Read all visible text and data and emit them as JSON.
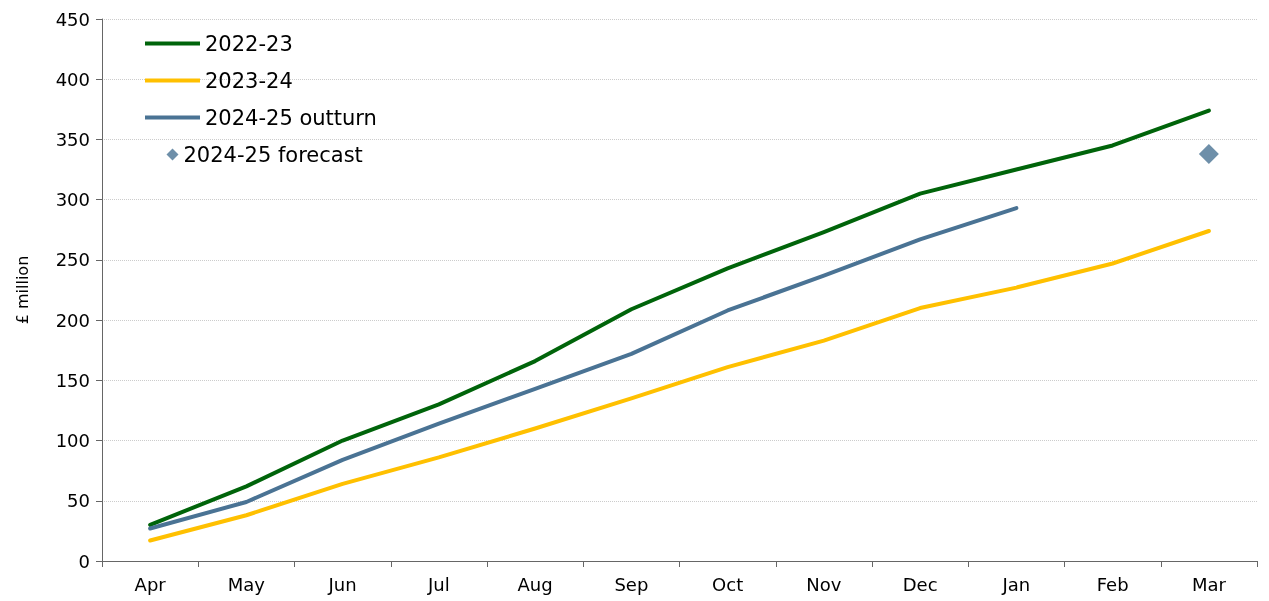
{
  "chart_data": {
    "type": "line",
    "ylabel": "£ million",
    "categories": [
      "Apr",
      "May",
      "Jun",
      "Jul",
      "Aug",
      "Sep",
      "Oct",
      "Nov",
      "Dec",
      "Jan",
      "Feb",
      "Mar"
    ],
    "ylim": [
      0,
      450
    ],
    "yticks": [
      0,
      50,
      100,
      150,
      200,
      250,
      300,
      350,
      400,
      450
    ],
    "grid": "y",
    "legend": "top left",
    "marker": "none",
    "line_style": "solid",
    "series": [
      {
        "name": "2022-23",
        "color": "#00640a",
        "values": [
          30,
          62,
          100,
          130,
          166,
          209,
          243,
          273,
          305,
          325,
          345,
          374
        ]
      },
      {
        "name": "2023-24",
        "color": "#ffc000",
        "values": [
          17,
          38,
          64,
          86,
          110,
          135,
          161,
          183,
          210,
          227,
          247,
          274
        ]
      },
      {
        "name": "2024-25 outturn",
        "color": "#4a7394",
        "values": [
          27,
          49,
          84,
          114,
          143,
          172,
          208,
          237,
          267,
          293,
          null,
          null
        ]
      },
      {
        "name": "2024-25 forecast",
        "type": "scatter",
        "marker": "diamond",
        "color": "#4a7394",
        "values": [
          null,
          null,
          null,
          null,
          null,
          null,
          null,
          null,
          null,
          null,
          null,
          338
        ]
      }
    ]
  }
}
